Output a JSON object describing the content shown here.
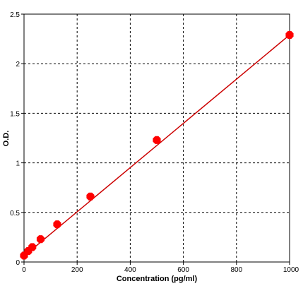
{
  "chart_data": {
    "type": "scatter",
    "title": "",
    "xlabel": "Concentration (pg/ml)",
    "ylabel": "O.D.",
    "xlim": [
      0,
      1000
    ],
    "ylim": [
      0,
      2.5
    ],
    "x_ticks": [
      0,
      200,
      400,
      600,
      800,
      1000
    ],
    "y_ticks": [
      0,
      0.5,
      1,
      1.5,
      2,
      2.5
    ],
    "x_tick_labels": [
      "0",
      "200",
      "400",
      "600",
      "800",
      "1000"
    ],
    "y_tick_labels": [
      "0",
      "0.5",
      "1",
      "1.5",
      "2",
      "2.5"
    ],
    "grid": true,
    "grid_style": "dashed",
    "legend": false,
    "series": [
      {
        "color": "#ff0000",
        "points": [
          {
            "x": 0,
            "y": 0.065
          },
          {
            "x": 15.6,
            "y": 0.11
          },
          {
            "x": 31.25,
            "y": 0.15
          },
          {
            "x": 62.5,
            "y": 0.23
          },
          {
            "x": 125,
            "y": 0.38
          },
          {
            "x": 250,
            "y": 0.66
          },
          {
            "x": 500,
            "y": 1.23
          },
          {
            "x": 1000,
            "y": 2.29
          }
        ]
      }
    ],
    "fit_line": {
      "color": "#cc0000",
      "x": [
        0,
        1000
      ],
      "y": [
        0.06,
        2.29
      ]
    }
  }
}
